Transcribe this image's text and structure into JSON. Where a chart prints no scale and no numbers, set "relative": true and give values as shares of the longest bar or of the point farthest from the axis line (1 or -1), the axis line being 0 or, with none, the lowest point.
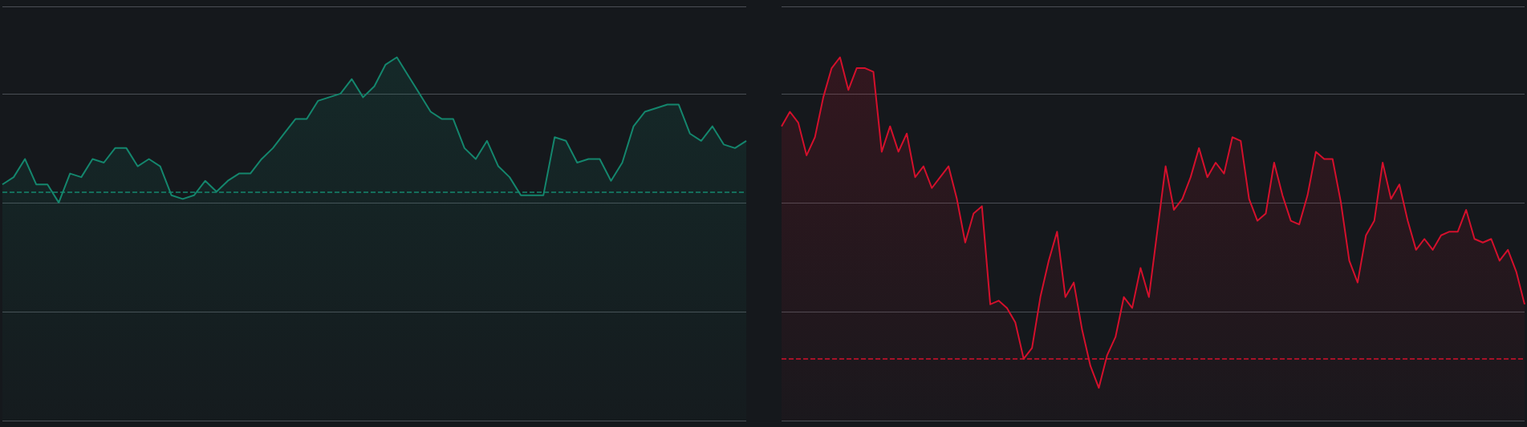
{
  "chart_data": [
    {
      "type": "area",
      "relative": true,
      "grid": "y",
      "marker": "none",
      "categories": [
        null,
        null,
        null,
        null,
        null,
        null,
        null,
        null,
        null,
        null,
        null,
        null,
        null,
        null,
        null,
        null,
        null,
        null,
        null,
        null,
        null,
        null,
        null,
        null,
        null,
        null,
        null,
        null,
        null,
        null,
        null,
        null,
        null,
        null,
        null,
        null,
        null,
        null,
        null,
        null,
        null,
        null,
        null,
        null,
        null,
        null,
        null,
        null,
        null,
        null,
        null,
        null,
        null,
        null,
        null,
        null,
        null,
        null,
        null,
        null,
        null,
        null,
        null,
        null,
        null,
        null,
        null
      ],
      "series": [
        {
          "color": "#14866d",
          "values": [
            0.65,
            0.67,
            0.72,
            0.65,
            0.65,
            0.6,
            0.68,
            0.67,
            0.72,
            0.71,
            0.75,
            0.75,
            0.7,
            0.72,
            0.7,
            0.62,
            0.61,
            0.62,
            0.66,
            0.63,
            0.66,
            0.68,
            0.68,
            0.72,
            0.75,
            0.79,
            0.83,
            0.83,
            0.88,
            0.89,
            0.9,
            0.94,
            0.89,
            0.92,
            0.98,
            1.0,
            0.95,
            0.9,
            0.85,
            0.83,
            0.83,
            0.75,
            0.72,
            0.77,
            0.7,
            0.67,
            0.62,
            0.62,
            0.62,
            0.78,
            0.77,
            0.71,
            0.72,
            0.72,
            0.66,
            0.71,
            0.81,
            0.85,
            0.86,
            0.87,
            0.87,
            0.79,
            0.77,
            0.81,
            0.76,
            0.75,
            0.77
          ]
        }
      ],
      "ref_lines": [
        {
          "axis": "y",
          "value": 0.63,
          "color": "#14866d",
          "line_style": "dashed"
        }
      ]
    },
    {
      "type": "area",
      "relative": true,
      "grid": "y",
      "marker": "none",
      "categories": [
        null,
        null,
        null,
        null,
        null,
        null,
        null,
        null,
        null,
        null,
        null,
        null,
        null,
        null,
        null,
        null,
        null,
        null,
        null,
        null,
        null,
        null,
        null,
        null,
        null,
        null,
        null,
        null,
        null,
        null,
        null,
        null,
        null,
        null,
        null,
        null,
        null,
        null,
        null,
        null,
        null,
        null,
        null,
        null,
        null,
        null,
        null,
        null,
        null,
        null,
        null,
        null,
        null,
        null,
        null,
        null,
        null,
        null,
        null,
        null,
        null,
        null,
        null,
        null,
        null,
        null,
        null,
        null,
        null,
        null,
        null,
        null,
        null,
        null,
        null,
        null,
        null,
        null,
        null,
        null,
        null,
        null,
        null,
        null,
        null,
        null,
        null,
        null,
        null,
        null
      ],
      "series": [
        {
          "color": "#d4102c",
          "values": [
            0.81,
            0.85,
            0.82,
            0.73,
            0.78,
            0.89,
            0.97,
            1.0,
            0.91,
            0.97,
            0.97,
            0.96,
            0.74,
            0.81,
            0.74,
            0.79,
            0.67,
            0.7,
            0.64,
            0.67,
            0.7,
            0.61,
            0.49,
            0.57,
            0.59,
            0.32,
            0.33,
            0.31,
            0.27,
            0.17,
            0.2,
            0.34,
            0.44,
            0.52,
            0.34,
            0.38,
            0.25,
            0.15,
            0.09,
            0.18,
            0.23,
            0.34,
            0.31,
            0.42,
            0.34,
            0.52,
            0.7,
            0.58,
            0.61,
            0.67,
            0.75,
            0.67,
            0.71,
            0.68,
            0.78,
            0.77,
            0.61,
            0.55,
            0.57,
            0.71,
            0.62,
            0.55,
            0.54,
            0.62,
            0.74,
            0.72,
            0.72,
            0.6,
            0.44,
            0.38,
            0.51,
            0.55,
            0.71,
            0.61,
            0.65,
            0.55,
            0.47,
            0.5,
            0.47,
            0.51,
            0.52,
            0.52,
            0.58,
            0.5,
            0.49,
            0.5,
            0.44,
            0.47,
            0.41,
            0.32
          ]
        }
      ],
      "ref_lines": [
        {
          "axis": "y",
          "value": 0.17,
          "color": "#d4102c",
          "line_style": "dashed"
        }
      ]
    }
  ]
}
